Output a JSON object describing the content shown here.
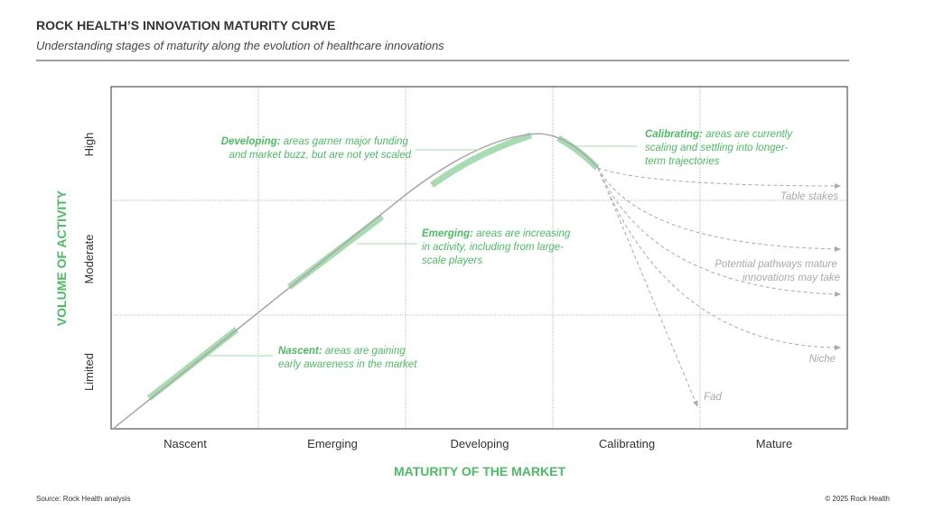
{
  "header": {
    "title": "ROCK HEALTH’S INNOVATION MATURITY CURVE",
    "subtitle": "Understanding stages of maturity along the evolution of healthcare innovations"
  },
  "axes": {
    "x_title": "MATURITY OF THE MARKET",
    "y_title": "VOLUME OF ACTIVITY",
    "x_categories": [
      "Nascent",
      "Emerging",
      "Developing",
      "Calibrating",
      "Mature"
    ],
    "y_categories": [
      "Limited",
      "Moderate",
      "High"
    ]
  },
  "annotations": {
    "nascent": {
      "term": "Nascent:",
      "l1": " areas are gaining",
      "l2": "early awareness in the market"
    },
    "emerging": {
      "term": "Emerging:",
      "l1": " areas are increasing",
      "l2": "in activity, including from large-",
      "l3": "scale players"
    },
    "developing": {
      "term": "Developing:",
      "l1": " areas garner major funding",
      "l2": "and market buzz, but are not yet scaled"
    },
    "calibrating": {
      "term": "Calibrating:",
      "l1": " areas are currently",
      "l2": "scaling and settling into longer-",
      "l3": "term trajectories"
    }
  },
  "pathways": {
    "table_stakes": "Table stakes",
    "potential_l1": "Potential pathways mature",
    "potential_l2": "innovations may take",
    "niche": "Niche",
    "fad": "Fad"
  },
  "colors": {
    "accent": "#4cbb63",
    "highlight": "#a6dcaf",
    "curve": "#aaaaaa"
  },
  "footer": {
    "source": "Source: Rock Health analysis",
    "copyright": "© 2025 Rock Health"
  }
}
